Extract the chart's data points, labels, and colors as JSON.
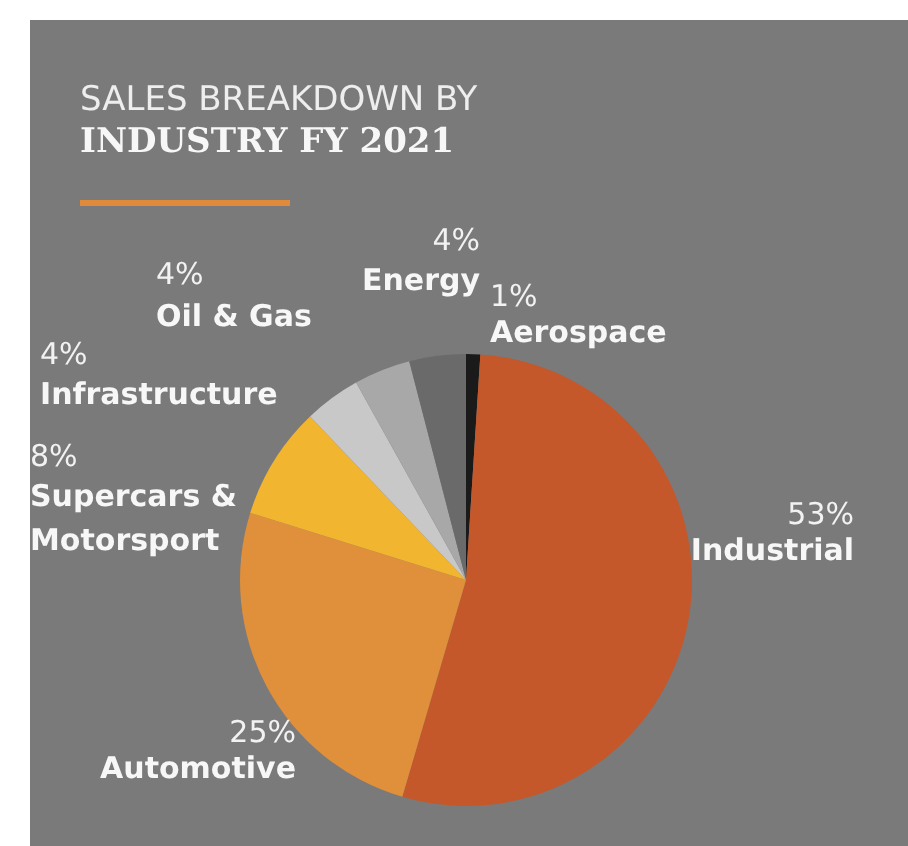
{
  "chart_data": {
    "type": "pie",
    "title": "SALES BREAKDOWN BY",
    "subtitle": "INDUSTRY FY 2021",
    "categories": [
      "Aerospace",
      "Industrial",
      "Automotive",
      "Supercars &\nMotorsport",
      "Infrastructure",
      "Oil & Gas",
      "Energy"
    ],
    "values": [
      1,
      53,
      25,
      8,
      4,
      4,
      4
    ],
    "value_labels": [
      "1%",
      "53%",
      "25%",
      "8%",
      "4%",
      "4%",
      "4%"
    ],
    "colors": [
      "#1a1a1a",
      "#c4582a",
      "#e08f3a",
      "#f2b530",
      "#c8c8c8",
      "#a8a8a8",
      "#6a6a6a"
    ]
  }
}
